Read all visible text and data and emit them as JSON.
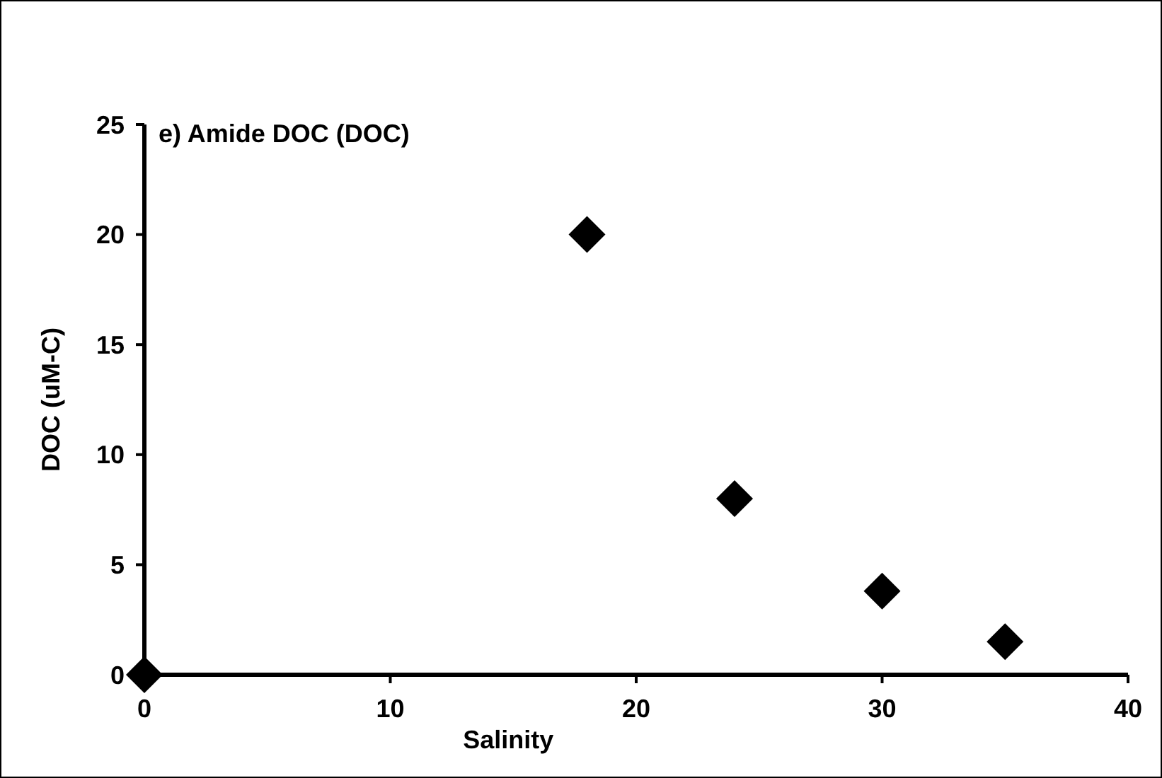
{
  "chart_data": {
    "type": "scatter",
    "title": "e) Amide DOC (DOC)",
    "xlabel": "Salinity",
    "ylabel": "DOC (uM-C)",
    "x": [
      0,
      18,
      24,
      30,
      35
    ],
    "values": [
      0,
      20,
      8,
      3.8,
      1.5
    ],
    "color": "#000000",
    "marker": "diamond",
    "xlim": [
      0,
      40
    ],
    "xticks": [
      0,
      10,
      20,
      30,
      40
    ],
    "ylim": [
      0,
      25
    ],
    "yticks": [
      0,
      5,
      10,
      15,
      20,
      25
    ]
  }
}
